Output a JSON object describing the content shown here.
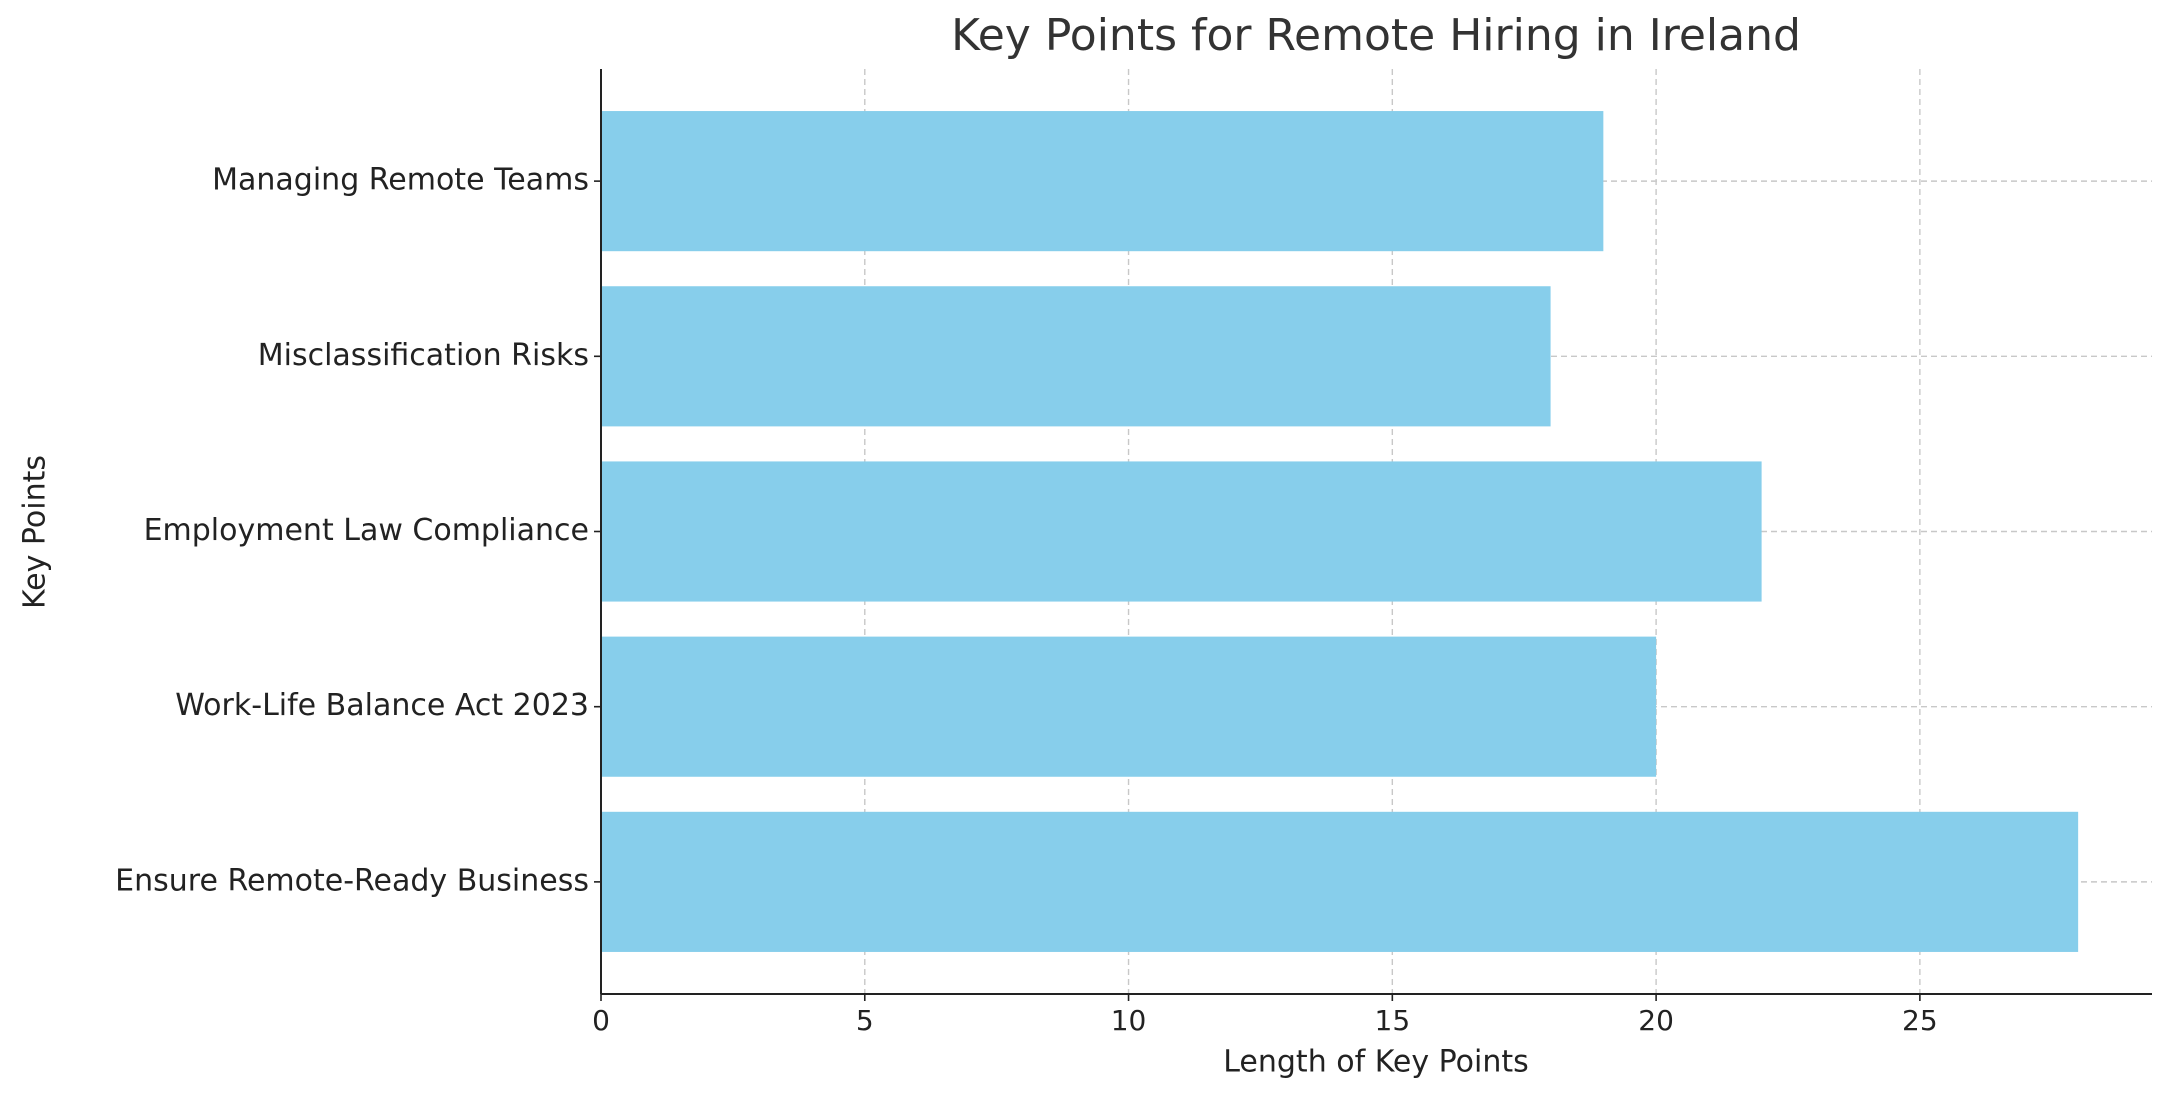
{
  "chart_data": {
    "type": "barh",
    "title": "Key Points for Remote Hiring in Ireland",
    "xlabel": "Length of Key Points",
    "ylabel": "Key Points",
    "categories": [
      "Ensure Remote-Ready Business",
      "Work-Life Balance Act 2023",
      "Employment Law Compliance",
      "Misclassification Risks",
      "Managing Remote Teams"
    ],
    "values": [
      28,
      20,
      22,
      18,
      19
    ],
    "color": "#87ceeb",
    "xlim": [
      0,
      29.4
    ],
    "xticks": [
      0,
      5,
      10,
      15,
      20,
      25
    ],
    "grid": true
  }
}
